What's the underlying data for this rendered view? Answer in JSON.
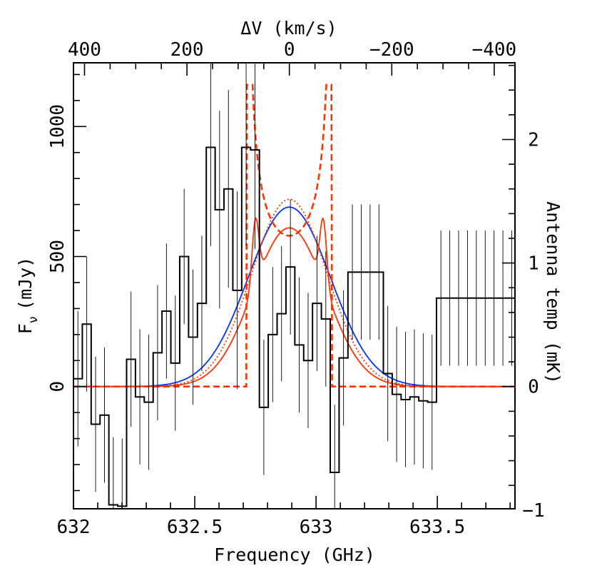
{
  "chart_data": {
    "type": "line",
    "title": "",
    "xlabel": "Frequency (GHz)",
    "ylabel": "F",
    "ylabel_sub": "ν",
    "ylabel_unit": "(mJy)",
    "top_xlabel": "ΔV (km/s)",
    "right_ylabel": "Antenna temp (mK)",
    "xlim": [
      632.0,
      633.82
    ],
    "ylim": [
      -470,
      1245
    ],
    "x_ticks": [
      632,
      632.5,
      633,
      633.5
    ],
    "x_tick_labels": [
      "632",
      "632.5",
      "633",
      "633.5"
    ],
    "y_ticks": [
      0,
      500,
      1000
    ],
    "y_tick_labels": [
      "0",
      "500",
      "1000"
    ],
    "top_ticks": [
      400,
      200,
      0,
      -200,
      -400
    ],
    "top_tick_labels": [
      "400",
      "200",
      "0",
      "−200",
      "−400"
    ],
    "right_ticks": [
      -1,
      0,
      1,
      2
    ],
    "right_tick_labels": [
      "−1",
      "0",
      "1",
      "2"
    ],
    "line_center_ghz": 632.89,
    "mjy_per_mk": 475,
    "histogram": {
      "name": "observed spectrum",
      "color": "#000000",
      "bin_width": 0.0365,
      "bin_left_edges": [
        632.0,
        632.0365,
        632.073,
        632.1095,
        632.146,
        632.1825,
        632.219,
        632.2555,
        632.292,
        632.3285,
        632.365,
        632.4015,
        632.438,
        632.4745,
        632.511,
        632.5475,
        632.584,
        632.6205,
        632.657,
        632.6935,
        632.73,
        632.7665,
        632.803,
        632.8395,
        632.876,
        632.9125,
        632.949,
        632.9855,
        633.022,
        633.0585,
        633.095,
        633.1315,
        633.168,
        633.2045,
        633.241,
        633.2775,
        633.314,
        633.3505,
        633.387,
        633.4235,
        633.46,
        633.4965,
        633.533,
        633.5695,
        633.606,
        633.6425,
        633.679,
        633.7155,
        633.752,
        633.7885
      ],
      "values": [
        30,
        240,
        -145,
        -110,
        -455,
        -460,
        105,
        -40,
        -60,
        130,
        290,
        90,
        500,
        190,
        320,
        920,
        680,
        760,
        370,
        920,
        910,
        -80,
        200,
        280,
        460,
        160,
        100,
        320,
        260,
        -330,
        110,
        440,
        440,
        440,
        440,
        50,
        -30,
        -50,
        -40,
        -55,
        -60,
        340,
        340,
        340,
        340,
        340,
        340,
        340,
        340,
        340
      ],
      "errors": [
        260,
        260,
        260,
        260,
        260,
        260,
        260,
        260,
        260,
        260,
        260,
        260,
        260,
        260,
        260,
        380,
        380,
        380,
        380,
        380,
        380,
        260,
        260,
        260,
        260,
        260,
        260,
        260,
        260,
        260,
        260,
        260,
        260,
        260,
        260,
        260,
        260,
        260,
        260,
        260,
        260,
        260,
        260,
        260,
        260,
        260,
        260,
        260,
        260,
        260
      ]
    },
    "series": [
      {
        "name": "gaussian fit",
        "color": "#0033ff",
        "style": "solid",
        "model": "gauss",
        "peak": 690,
        "sigma_ghz": 0.17
      },
      {
        "name": "model ring (solid red)",
        "color": "#ff3300",
        "style": "solid",
        "model": "double",
        "base_peak": 610,
        "base_sigma": 0.15,
        "horn_offset": 0.14,
        "horn_height": 250,
        "horn_width": 0.014
      },
      {
        "name": "model ring (dotted red)",
        "color": "#ff3300",
        "style": "dotted",
        "model": "gauss",
        "peak": 720,
        "sigma_ghz": 0.155
      },
      {
        "name": "model disk (dashed red)",
        "color": "#ff3300",
        "style": "dashed",
        "model": "horned",
        "edge_low": 632.715,
        "edge_high": 633.065,
        "center_level": 580,
        "horn_level": 1160
      }
    ]
  }
}
